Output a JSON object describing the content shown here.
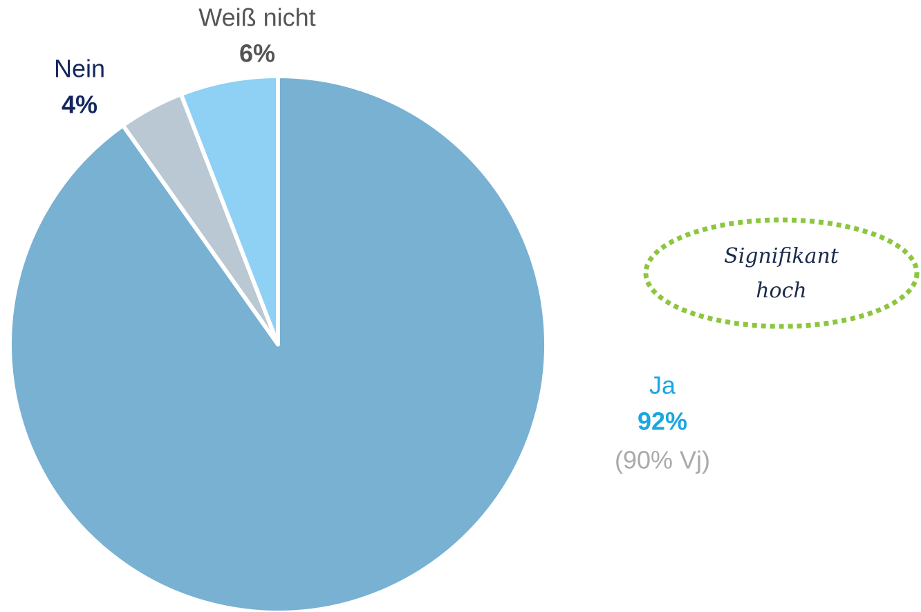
{
  "chart_data": {
    "type": "pie",
    "categories": [
      "Ja",
      "Nein",
      "Weiß nicht"
    ],
    "values": [
      92,
      4,
      6
    ],
    "value_labels": [
      "92%",
      "4%",
      "6%"
    ],
    "colors": [
      "#78b1d2",
      "#b9c8d3",
      "#8fd0f5"
    ],
    "label_colors": [
      "#1aa7e0",
      "#13265e",
      "#555555"
    ],
    "annotations": [
      "(90% Vj)"
    ],
    "callout": [
      "Signifikant",
      "hoch"
    ]
  }
}
